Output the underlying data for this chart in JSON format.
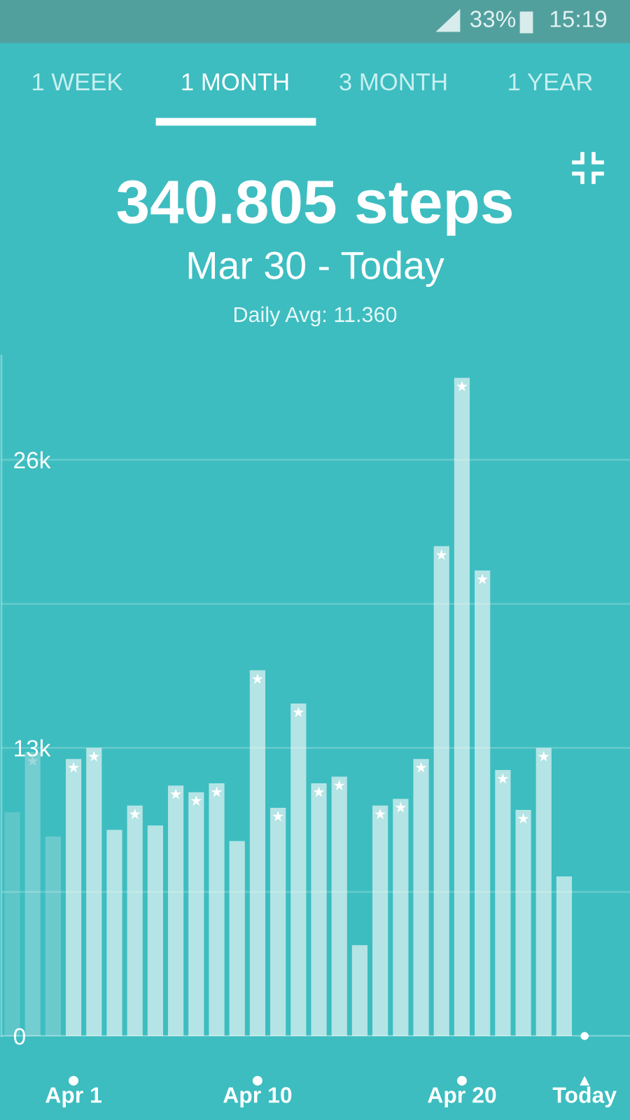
{
  "chart_data": {
    "type": "bar",
    "title": "340.805 steps",
    "subtitle": "Mar 30 - Today",
    "annotations": [
      "1 WEEK",
      "1 MONTH",
      "3 MONTH",
      "1 YEAR",
      "Daily Avg: 11.360",
      "33%",
      "15:19"
    ],
    "categories": [
      null,
      null,
      null,
      "Apr 1",
      null,
      null,
      null,
      null,
      null,
      null,
      null,
      null,
      "Apr 10",
      null,
      null,
      null,
      null,
      null,
      null,
      null,
      null,
      null,
      "Apr 20",
      null,
      null,
      null,
      null,
      null,
      "Today"
    ],
    "series": [
      {
        "colors": [
          "#5ec6c9",
          "#74cdd0",
          "#6ccacd",
          "#b4e4e5",
          "#b4e4e5",
          "#b4e4e5",
          "#b4e4e5",
          "#b4e4e5",
          "#b4e4e5",
          "#b4e4e5",
          "#b4e4e5",
          "#b4e4e5",
          "#b4e4e5",
          "#b4e4e5",
          "#b4e4e5",
          "#b4e4e5",
          "#b4e4e5",
          "#b4e4e5",
          "#b4e4e5",
          "#b4e4e5",
          "#b4e4e5",
          "#b4e4e5",
          "#b4e4e5",
          "#b4e4e5",
          "#b4e4e5",
          "#b4e4e5",
          "#b4e4e5",
          "#b4e4e5",
          "#ffffff"
        ],
        "values": [
          10100,
          12800,
          9000,
          12500,
          13000,
          9300,
          10400,
          9500,
          11300,
          11000,
          11400,
          8800,
          16500,
          10300,
          15000,
          11400,
          11700,
          4100,
          10400,
          10700,
          12500,
          22100,
          29700,
          21000,
          12000,
          10200,
          13000,
          7200,
          0
        ]
      },
      {
        "type": "scatter",
        "marker": "star",
        "colors": [
          null,
          "#9adadc",
          null,
          "#ffffff",
          "#ffffff",
          null,
          "#ffffff",
          null,
          "#ffffff",
          "#ffffff",
          "#ffffff",
          null,
          "#ffffff",
          "#ffffff",
          "#ffffff",
          "#ffffff",
          "#ffffff",
          null,
          "#ffffff",
          "#ffffff",
          "#ffffff",
          "#ffffff",
          "#ffffff",
          "#ffffff",
          "#ffffff",
          "#ffffff",
          "#ffffff",
          null,
          null
        ],
        "values": [
          null,
          12400,
          null,
          12100,
          12600,
          null,
          10000,
          null,
          10900,
          10600,
          11000,
          null,
          16100,
          9900,
          14600,
          11000,
          11300,
          null,
          10000,
          10300,
          12100,
          21700,
          29300,
          20600,
          11600,
          9800,
          12600,
          null,
          null
        ]
      }
    ],
    "ylim": [
      0,
      30700
    ],
    "yticks": [
      0,
      {
        "value": 6500,
        "label": null
      },
      {
        "value": 13000,
        "label": "13k"
      },
      {
        "value": 19500,
        "label": null
      },
      {
        "value": 26000,
        "label": "26k"
      }
    ],
    "grid": "y"
  }
}
